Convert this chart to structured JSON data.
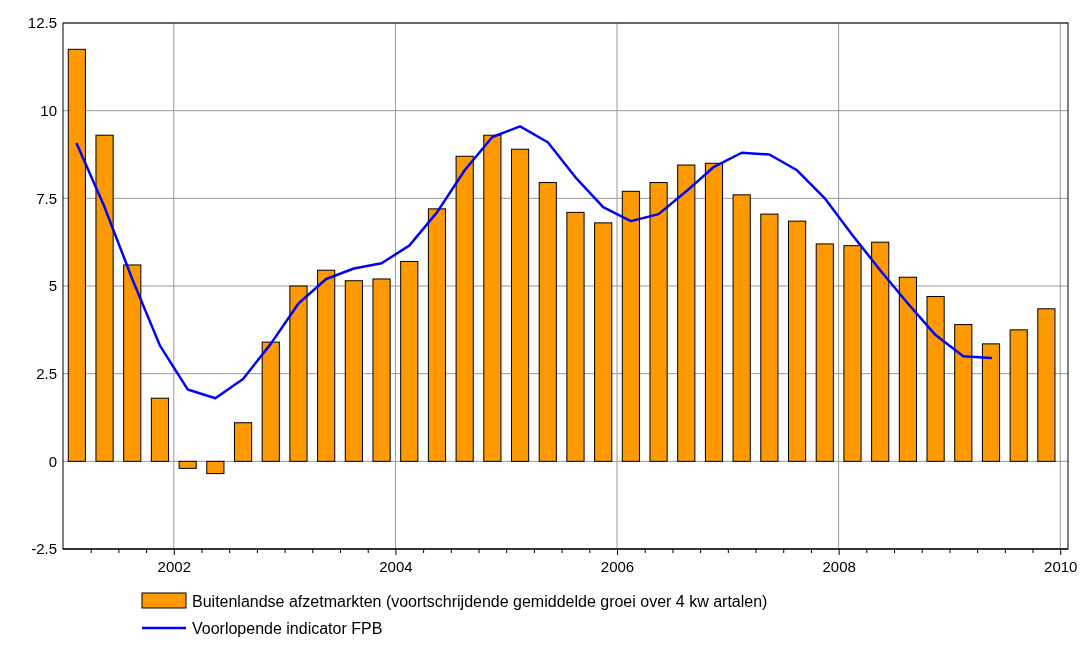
{
  "chart_data": {
    "type": "bar",
    "xlim": [
      2001.0,
      2010.07
    ],
    "ylim": [
      -2.5,
      12.5
    ],
    "xticks": [
      {
        "value": 2001.25,
        "label": null
      },
      {
        "value": 2001.5,
        "label": null
      },
      {
        "value": 2001.75,
        "label": null
      },
      2002,
      {
        "value": 2002.25,
        "label": null
      },
      {
        "value": 2002.5,
        "label": null
      },
      {
        "value": 2002.75,
        "label": null
      },
      {
        "value": 2003,
        "label": null
      },
      {
        "value": 2003.25,
        "label": null
      },
      {
        "value": 2003.5,
        "label": null
      },
      {
        "value": 2003.75,
        "label": null
      },
      2004,
      {
        "value": 2004.25,
        "label": null
      },
      {
        "value": 2004.5,
        "label": null
      },
      {
        "value": 2004.75,
        "label": null
      },
      {
        "value": 2005,
        "label": null
      },
      {
        "value": 2005.25,
        "label": null
      },
      {
        "value": 2005.5,
        "label": null
      },
      {
        "value": 2005.75,
        "label": null
      },
      2006,
      {
        "value": 2006.25,
        "label": null
      },
      {
        "value": 2006.5,
        "label": null
      },
      {
        "value": 2006.75,
        "label": null
      },
      {
        "value": 2007,
        "label": null
      },
      {
        "value": 2007.25,
        "label": null
      },
      {
        "value": 2007.5,
        "label": null
      },
      {
        "value": 2007.75,
        "label": null
      },
      2008,
      {
        "value": 2008.25,
        "label": null
      },
      {
        "value": 2008.5,
        "label": null
      },
      {
        "value": 2008.75,
        "label": null
      },
      {
        "value": 2009,
        "label": null
      },
      {
        "value": 2009.25,
        "label": null
      },
      {
        "value": 2009.5,
        "label": null
      },
      {
        "value": 2009.75,
        "label": null
      },
      2010
    ],
    "yticks": [
      -2.5,
      0,
      2.5,
      5,
      7.5,
      10,
      12.5
    ],
    "grid": true,
    "legend": "bottom",
    "series": [
      {
        "name": "Buitenlandse afzetmarkten (voortschrijdende gemiddelde groei over 4 kw artalen)",
        "color": "#ff9900",
        "x": [
          2001.125,
          2001.375,
          2001.625,
          2001.875,
          2002.125,
          2002.375,
          2002.625,
          2002.875,
          2003.125,
          2003.375,
          2003.625,
          2003.875,
          2004.125,
          2004.375,
          2004.625,
          2004.875,
          2005.125,
          2005.375,
          2005.625,
          2005.875,
          2006.125,
          2006.375,
          2006.625,
          2006.875,
          2007.125,
          2007.375,
          2007.625,
          2007.875,
          2008.125,
          2008.375,
          2008.625,
          2008.875,
          2009.125,
          2009.375,
          2009.625,
          2009.875
        ],
        "values": [
          11.75,
          9.3,
          5.6,
          1.8,
          -0.2,
          -0.35,
          1.1,
          3.4,
          5.0,
          5.45,
          5.15,
          5.2,
          5.7,
          7.2,
          8.7,
          9.3,
          8.9,
          7.95,
          7.1,
          6.8,
          7.7,
          7.95,
          8.45,
          8.5,
          7.6,
          7.05,
          6.85,
          6.2,
          6.15,
          6.25,
          5.25,
          4.7,
          3.9,
          3.35,
          3.75,
          4.35
        ]
      },
      {
        "type": "line",
        "name": "Voorlopende indicator FPB",
        "color": "#0000ff",
        "x": [
          2001.125,
          2001.375,
          2001.625,
          2001.875,
          2002.125,
          2002.375,
          2002.625,
          2002.875,
          2003.125,
          2003.375,
          2003.625,
          2003.875,
          2004.125,
          2004.375,
          2004.625,
          2004.875,
          2005.125,
          2005.375,
          2005.625,
          2005.875,
          2006.125,
          2006.375,
          2006.625,
          2006.875,
          2007.125,
          2007.375,
          2007.625,
          2007.875,
          2008.125,
          2008.375,
          2008.625,
          2008.875,
          2009.125,
          2009.375
        ],
        "values": [
          9.05,
          7.25,
          5.2,
          3.3,
          2.05,
          1.8,
          2.35,
          3.35,
          4.5,
          5.2,
          5.5,
          5.65,
          6.15,
          7.1,
          8.3,
          9.25,
          9.55,
          9.1,
          8.1,
          7.25,
          6.85,
          7.05,
          7.7,
          8.4,
          8.8,
          8.75,
          8.3,
          7.5,
          6.45,
          5.45,
          4.5,
          3.6,
          3.0,
          2.95
        ]
      }
    ]
  }
}
